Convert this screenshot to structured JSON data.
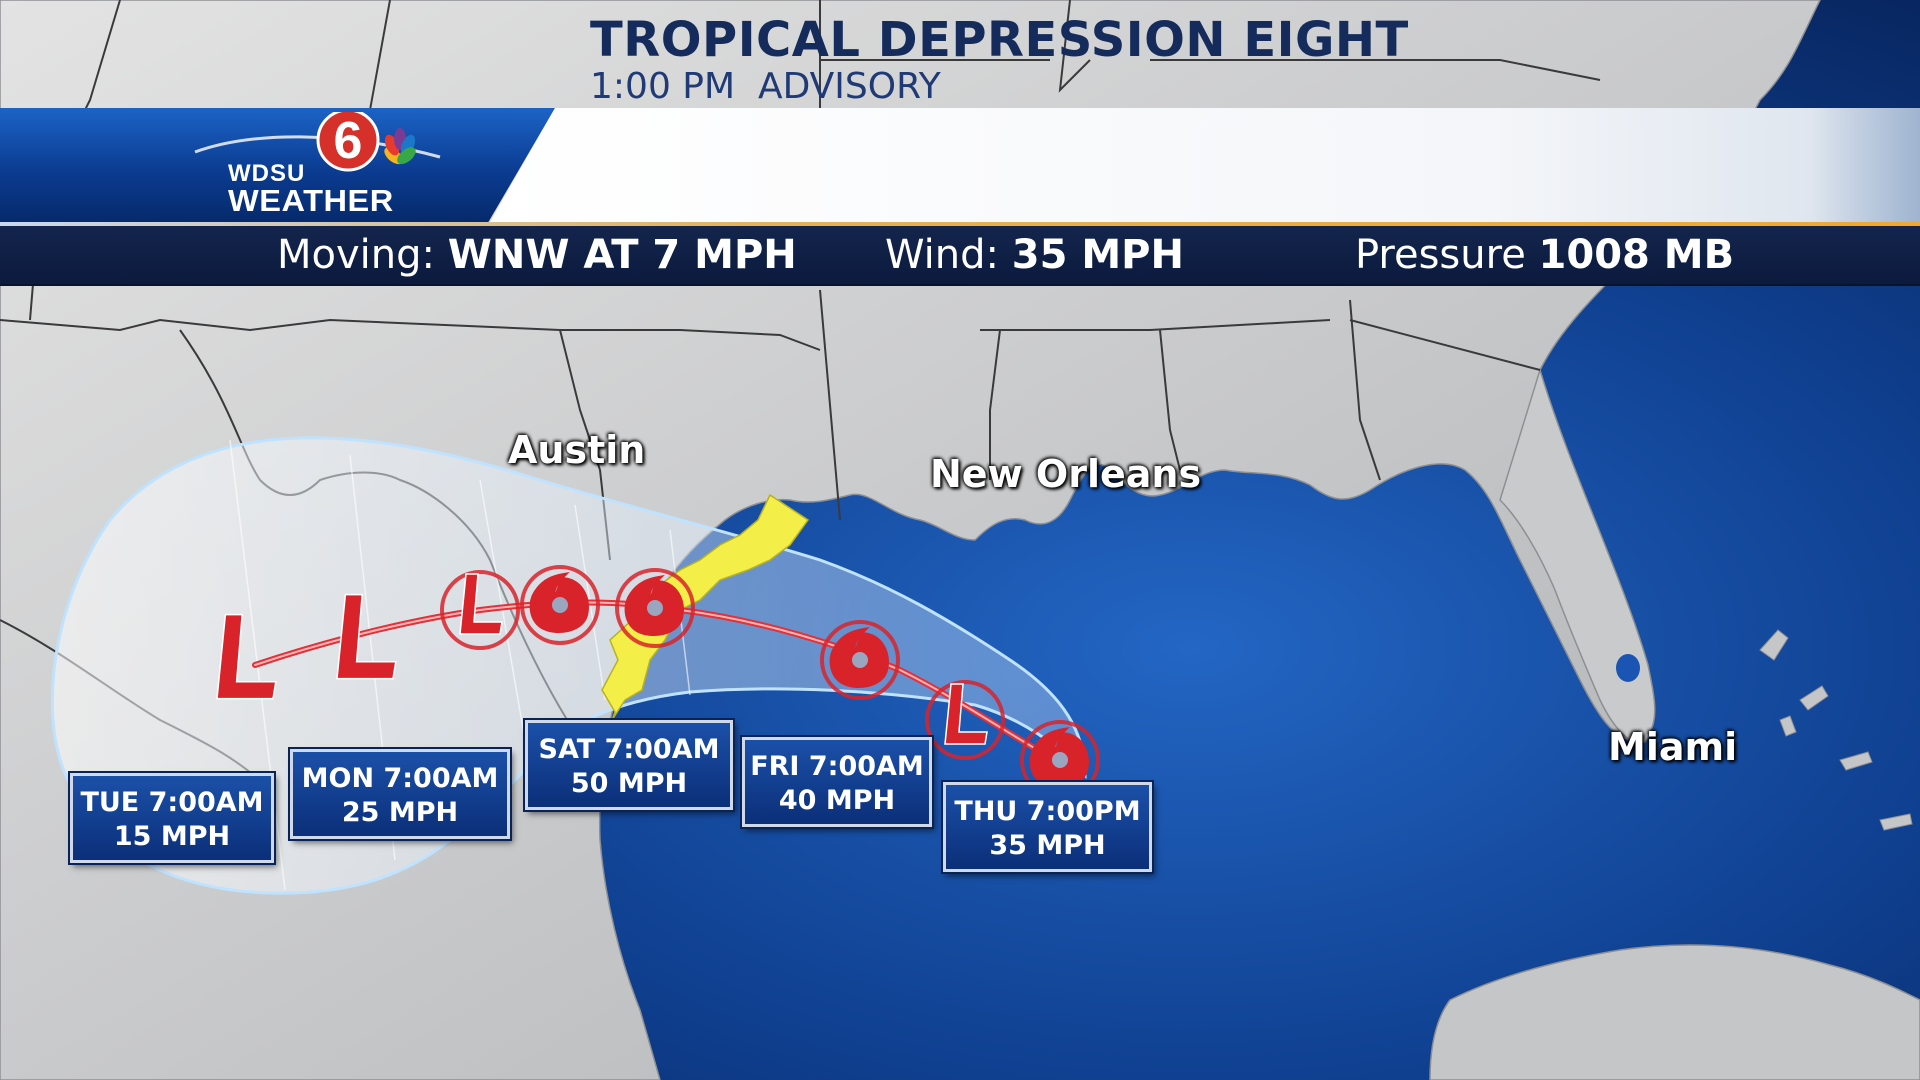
{
  "header": {
    "logo_line1": "WDSU",
    "logo_line2": "WEATHER",
    "logo_number": "6",
    "title": "TROPICAL DEPRESSION EIGHT",
    "subtitle": "1:00 PM  ADVISORY"
  },
  "info_bar": {
    "moving_label": "Moving:",
    "moving_value": "WNW AT 7 MPH",
    "wind_label": "Wind:",
    "wind_value": "35 MPH",
    "pressure_label": "Pressure",
    "pressure_value": "1008 MB"
  },
  "cities": {
    "austin": "Austin",
    "new_orleans": "New Orleans",
    "miami": "Miami"
  },
  "forecast_points": [
    {
      "time": "TUE 7:00AM",
      "speed": "15 MPH",
      "symbol": "L"
    },
    {
      "time": "MON 7:00AM",
      "speed": "25 MPH",
      "symbol": "L"
    },
    {
      "time": "SAT 7:00AM",
      "speed": "50 MPH",
      "symbol": "TS"
    },
    {
      "time": "FRI 7:00AM",
      "speed": "40 MPH",
      "symbol": "TS"
    },
    {
      "time": "THU 7:00PM",
      "speed": "35 MPH",
      "symbol": "TD"
    }
  ],
  "colors": {
    "header_title": "#142b5c",
    "info_bar_bg": "#0b1a3d",
    "track_line": "#e0323a",
    "storm_symbol": "#d8232a",
    "cone_edge": "#bfe3ff",
    "warning_area": "#f5f04a",
    "forecast_box": "#0b2f79",
    "land": "#c8c8c8",
    "water": "#0d3a86"
  }
}
